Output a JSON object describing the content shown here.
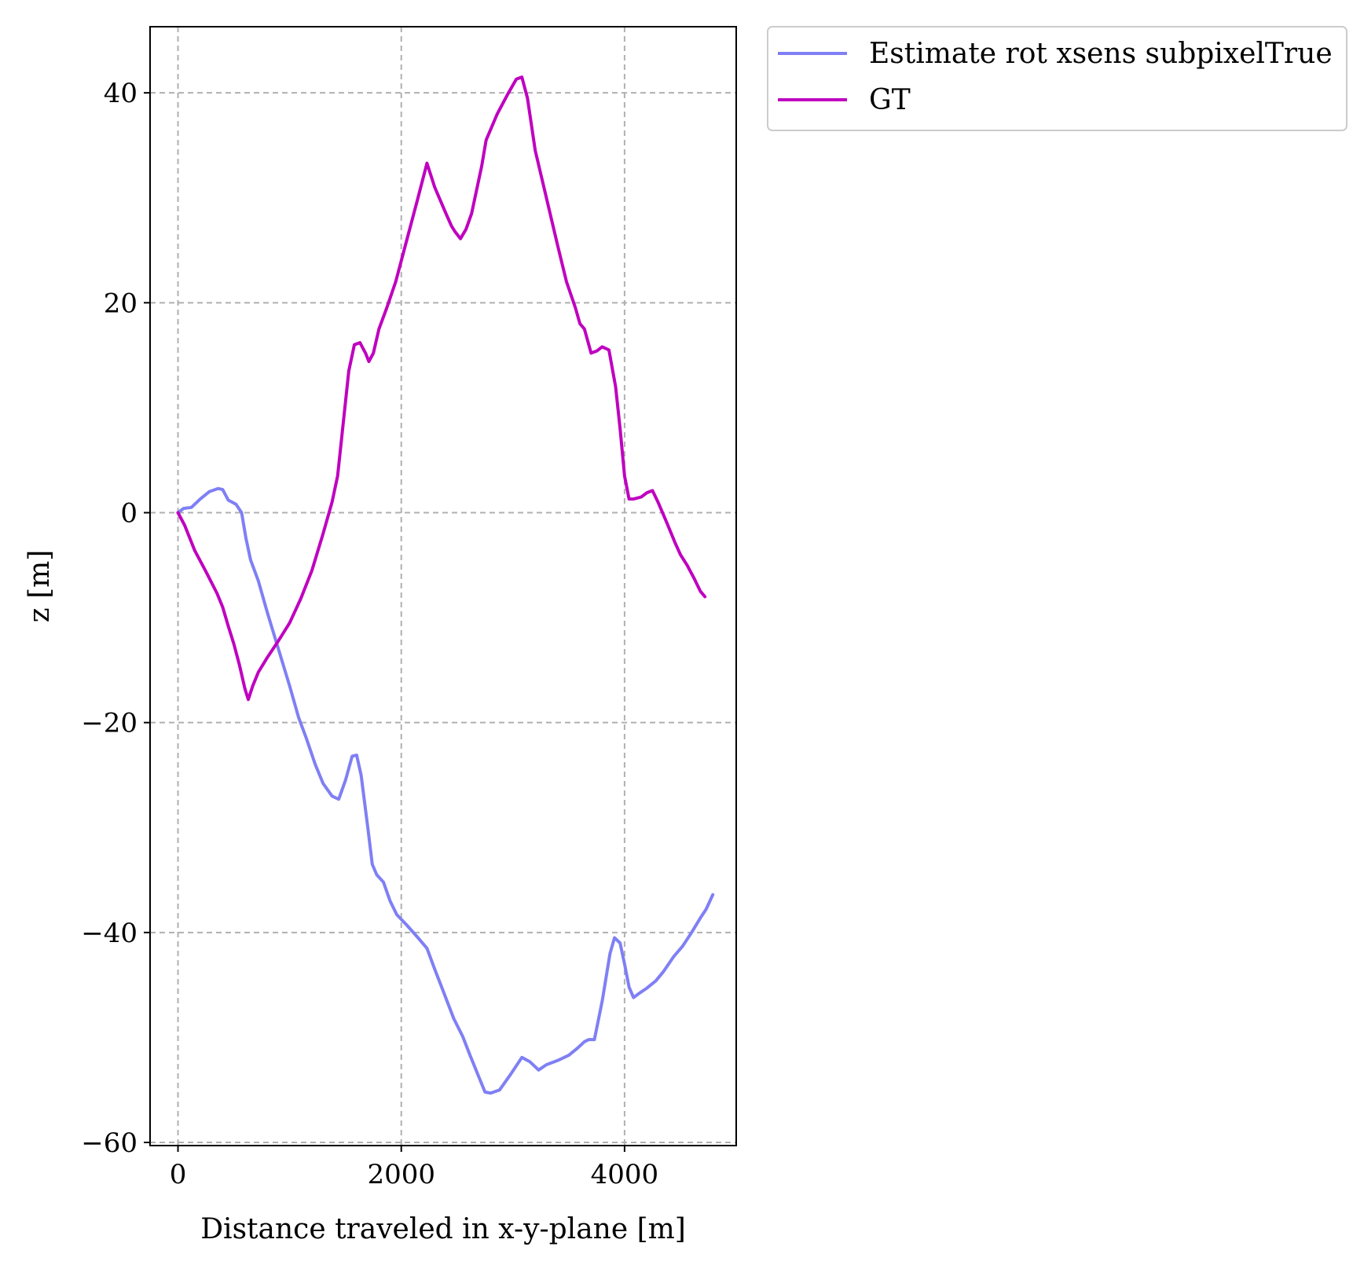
{
  "chart_data": {
    "type": "line",
    "title": "",
    "xlabel": "Distance traveled in x-y-plane [m]",
    "ylabel": "z [m]",
    "xlim": [
      -250,
      5000
    ],
    "ylim": [
      -60.3,
      46.3
    ],
    "x_ticks": [
      0,
      2000,
      4000
    ],
    "x_tick_labels": [
      "0",
      "2000",
      "4000"
    ],
    "y_ticks": [
      -60,
      -40,
      -20,
      0,
      20,
      40
    ],
    "y_tick_labels": [
      "−60",
      "−40",
      "−20",
      "0",
      "20",
      "40"
    ],
    "grid": true,
    "legend_position": "outside top-right",
    "series": [
      {
        "name": "Estimate rot xsens subpixelTrue",
        "color": "#7f7ff5",
        "points": [
          [
            0,
            0
          ],
          [
            50,
            0.4
          ],
          [
            120,
            0.5
          ],
          [
            200,
            1.3
          ],
          [
            280,
            2.0
          ],
          [
            360,
            2.3
          ],
          [
            400,
            2.2
          ],
          [
            450,
            1.2
          ],
          [
            520,
            0.8
          ],
          [
            570,
            0
          ],
          [
            610,
            -2.5
          ],
          [
            650,
            -4.5
          ],
          [
            720,
            -6.5
          ],
          [
            800,
            -9.5
          ],
          [
            900,
            -13
          ],
          [
            1000,
            -16.5
          ],
          [
            1080,
            -19.5
          ],
          [
            1150,
            -21.5
          ],
          [
            1230,
            -24
          ],
          [
            1300,
            -25.8
          ],
          [
            1380,
            -27
          ],
          [
            1440,
            -27.3
          ],
          [
            1500,
            -25.5
          ],
          [
            1560,
            -23.2
          ],
          [
            1600,
            -23.1
          ],
          [
            1640,
            -25
          ],
          [
            1700,
            -30
          ],
          [
            1740,
            -33.5
          ],
          [
            1780,
            -34.5
          ],
          [
            1840,
            -35.2
          ],
          [
            1900,
            -37
          ],
          [
            1960,
            -38.3
          ],
          [
            2050,
            -39.3
          ],
          [
            2150,
            -40.5
          ],
          [
            2230,
            -41.5
          ],
          [
            2300,
            -43.5
          ],
          [
            2380,
            -45.7
          ],
          [
            2470,
            -48.2
          ],
          [
            2550,
            -49.9
          ],
          [
            2620,
            -51.8
          ],
          [
            2700,
            -53.9
          ],
          [
            2750,
            -55.2
          ],
          [
            2800,
            -55.3
          ],
          [
            2880,
            -55
          ],
          [
            2980,
            -53.5
          ],
          [
            3080,
            -51.9
          ],
          [
            3150,
            -52.3
          ],
          [
            3230,
            -53.1
          ],
          [
            3300,
            -52.6
          ],
          [
            3400,
            -52.2
          ],
          [
            3500,
            -51.7
          ],
          [
            3580,
            -51
          ],
          [
            3640,
            -50.4
          ],
          [
            3680,
            -50.2
          ],
          [
            3730,
            -50.2
          ],
          [
            3800,
            -46.5
          ],
          [
            3870,
            -42
          ],
          [
            3910,
            -40.5
          ],
          [
            3960,
            -41
          ],
          [
            4000,
            -43
          ],
          [
            4040,
            -45.2
          ],
          [
            4080,
            -46.2
          ],
          [
            4130,
            -45.8
          ],
          [
            4200,
            -45.3
          ],
          [
            4280,
            -44.6
          ],
          [
            4350,
            -43.7
          ],
          [
            4440,
            -42.3
          ],
          [
            4520,
            -41.3
          ],
          [
            4600,
            -40
          ],
          [
            4680,
            -38.6
          ],
          [
            4730,
            -37.8
          ],
          [
            4760,
            -37.1
          ],
          [
            4790,
            -36.4
          ]
        ]
      },
      {
        "name": "GT",
        "color": "#bf00bf",
        "points": [
          [
            0,
            0
          ],
          [
            60,
            -1.2
          ],
          [
            150,
            -3.6
          ],
          [
            250,
            -5.6
          ],
          [
            350,
            -7.7
          ],
          [
            400,
            -9
          ],
          [
            450,
            -10.8
          ],
          [
            500,
            -12.5
          ],
          [
            550,
            -14.5
          ],
          [
            600,
            -16.8
          ],
          [
            630,
            -17.8
          ],
          [
            670,
            -16.5
          ],
          [
            720,
            -15.2
          ],
          [
            800,
            -13.8
          ],
          [
            900,
            -12.2
          ],
          [
            1000,
            -10.5
          ],
          [
            1100,
            -8.2
          ],
          [
            1200,
            -5.5
          ],
          [
            1300,
            -2
          ],
          [
            1380,
            1
          ],
          [
            1430,
            3.5
          ],
          [
            1480,
            8.5
          ],
          [
            1530,
            13.5
          ],
          [
            1580,
            16
          ],
          [
            1630,
            16.2
          ],
          [
            1680,
            15.2
          ],
          [
            1710,
            14.4
          ],
          [
            1750,
            15.2
          ],
          [
            1800,
            17.5
          ],
          [
            1870,
            19.5
          ],
          [
            1950,
            22
          ],
          [
            2050,
            26
          ],
          [
            2150,
            30
          ],
          [
            2230,
            33.3
          ],
          [
            2300,
            31
          ],
          [
            2400,
            28.5
          ],
          [
            2450,
            27.3
          ],
          [
            2480,
            26.8
          ],
          [
            2530,
            26.1
          ],
          [
            2580,
            27
          ],
          [
            2630,
            28.5
          ],
          [
            2720,
            33
          ],
          [
            2760,
            35.5
          ],
          [
            2800,
            36.5
          ],
          [
            2860,
            38
          ],
          [
            2950,
            39.8
          ],
          [
            3030,
            41.3
          ],
          [
            3080,
            41.5
          ],
          [
            3130,
            39.5
          ],
          [
            3200,
            34.5
          ],
          [
            3300,
            30
          ],
          [
            3400,
            25.5
          ],
          [
            3480,
            22
          ],
          [
            3560,
            19.5
          ],
          [
            3600,
            18
          ],
          [
            3640,
            17.5
          ],
          [
            3700,
            15.2
          ],
          [
            3750,
            15.4
          ],
          [
            3800,
            15.8
          ],
          [
            3860,
            15.5
          ],
          [
            3920,
            12
          ],
          [
            3960,
            8
          ],
          [
            4000,
            3.5
          ],
          [
            4040,
            1.3
          ],
          [
            4080,
            1.3
          ],
          [
            4150,
            1.5
          ],
          [
            4200,
            1.9
          ],
          [
            4250,
            2.1
          ],
          [
            4300,
            1
          ],
          [
            4380,
            -1
          ],
          [
            4450,
            -2.8
          ],
          [
            4500,
            -4
          ],
          [
            4560,
            -5
          ],
          [
            4620,
            -6.2
          ],
          [
            4680,
            -7.5
          ],
          [
            4720,
            -8
          ]
        ]
      }
    ]
  }
}
